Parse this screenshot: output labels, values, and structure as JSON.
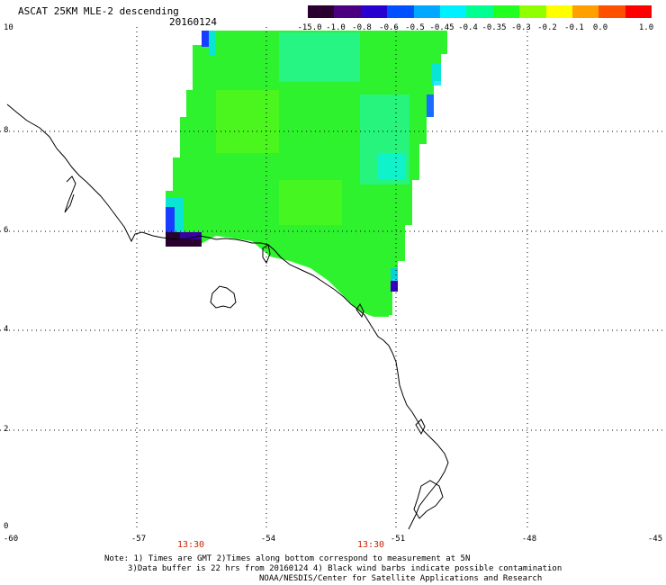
{
  "title": "ASCAT 25KM MLE-2 descending",
  "date": "20160124",
  "colorbar": {
    "labels": [
      "-15.0",
      "-1.0",
      "-0.8",
      "-0.6",
      "-0.5",
      "-0.45",
      "-0.4",
      "-0.35",
      "-0.3",
      "-0.2",
      "-0.1",
      "0.0",
      "1.0"
    ],
    "colors": [
      "#2a0030",
      "#4b0082",
      "#2800d0",
      "#0050ff",
      "#00a8ff",
      "#00f0ff",
      "#00ff90",
      "#20ff20",
      "#90ff00",
      "#ffff00",
      "#ffa000",
      "#ff5000",
      "#ff0000"
    ]
  },
  "axes": {
    "y_ticks": [
      "10",
      "8",
      "6",
      "4",
      "2",
      "0"
    ],
    "x_ticks": [
      "-60",
      "-57",
      "-54",
      "-51",
      "-48",
      "-45"
    ]
  },
  "pass_times": [
    "13:30",
    "13:30"
  ],
  "notes": [
    "Note: 1) Times are GMT 2)Times along bottom correspond to measurement at 5N",
    "3)Data buffer is 22 hrs from 20160124 4) Black wind barbs indicate possible contamination",
    "NOAA/NESDIS/Center for Satellite Applications and Research"
  ],
  "colors": {
    "swath_main": "#2ef22e",
    "coast": "#000000",
    "grid": "#000000"
  }
}
